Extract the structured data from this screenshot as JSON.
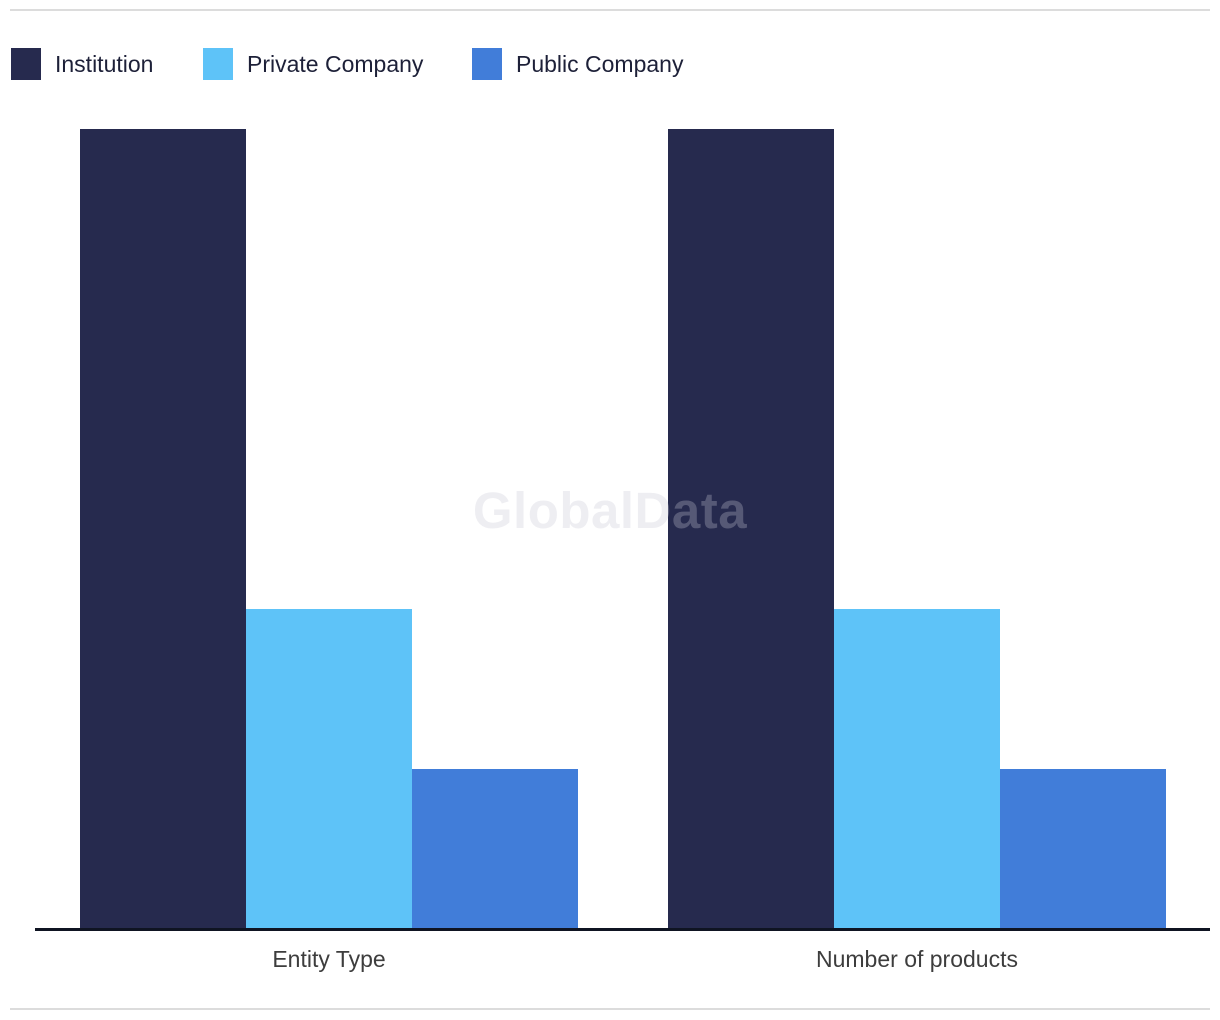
{
  "chart_data": {
    "type": "bar",
    "title": "",
    "categories": [
      "Entity Type",
      "Number of products"
    ],
    "series": [
      {
        "name": "Institution",
        "color": "#262a4e",
        "values": [
          100,
          100
        ]
      },
      {
        "name": "Private Company",
        "color": "#5ec3f8",
        "values": [
          40,
          40
        ]
      },
      {
        "name": "Public Company",
        "color": "#417dd9",
        "values": [
          20,
          20
        ]
      }
    ],
    "ylim": [
      0,
      100
    ],
    "y_axis_visible": false,
    "value_scale": "relative-height-percent-of-tallest-bar",
    "grid": false,
    "legend_position": "top-left",
    "watermark": "GlobalData"
  },
  "colors": {
    "background": "#ffffff",
    "axis_line": "#0f1422",
    "axis_label_text": "#3d3d3d",
    "legend_text": "#1d2038",
    "divider": "#dcdcdc",
    "watermark": "rgba(198,200,212,0.30)"
  }
}
